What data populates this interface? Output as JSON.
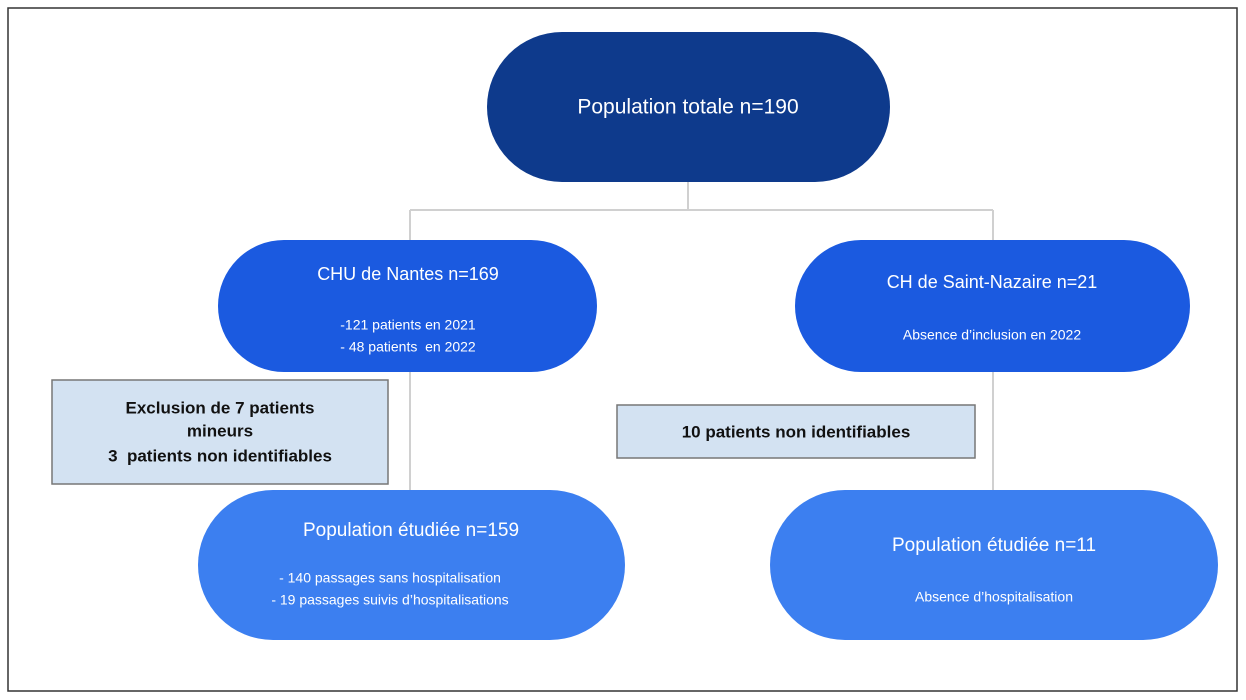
{
  "nodes": [
    {
      "title": "Population totale n=190",
      "lines": []
    },
    {
      "title": "CHU de Nantes n=169",
      "lines": [
        "-121 patients en 2021",
        "- 48 patients  en 2022"
      ]
    },
    {
      "title": "CH de Saint-Nazaire n=21",
      "lines": [
        "Absence d’inclusion en 2022"
      ]
    },
    {
      "title": "Population étudiée n=159",
      "lines": [
        "- 140 passages sans hospitalisation",
        "- 19 passages suivis d’hospitalisations"
      ]
    },
    {
      "title": "Population étudiée n=11",
      "lines": [
        "Absence d’hospitalisation"
      ]
    }
  ],
  "exclusions": [
    {
      "lines": [
        "Exclusion de 7 patients",
        "mineurs",
        "3  patients non identifiables"
      ]
    },
    {
      "lines": [
        "10 patients non identifiables"
      ]
    }
  ]
}
